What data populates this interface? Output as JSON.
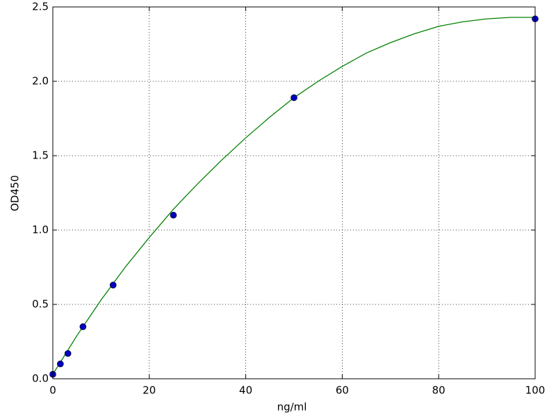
{
  "chart_data": {
    "type": "scatter",
    "xlabel": "ng/ml",
    "ylabel": "OD450",
    "xlim": [
      0,
      100
    ],
    "ylim": [
      0,
      2.5
    ],
    "xticks": [
      0,
      20,
      40,
      60,
      80,
      100
    ],
    "yticks": [
      {
        "value": 0,
        "label": "0.0"
      },
      0.5,
      {
        "value": 1,
        "label": "1.0"
      },
      1.5,
      {
        "value": 2,
        "label": "2.0"
      },
      2.5
    ],
    "grid": true,
    "series": [
      {
        "type": "scatter",
        "color": "#0000c0",
        "x": [
          0,
          1.5625,
          3.125,
          6.25,
          12.5,
          25,
          50,
          100
        ],
        "values": [
          0.03,
          0.1,
          0.17,
          0.35,
          0.63,
          1.1,
          1.89,
          2.42
        ]
      },
      {
        "type": "line",
        "color": "#008000",
        "x": [
          0,
          5,
          10,
          15,
          20,
          25,
          30,
          35,
          40,
          45,
          50,
          55,
          60,
          65,
          70,
          75,
          80,
          85,
          90,
          95,
          100
        ],
        "values": [
          0.03,
          0.29,
          0.53,
          0.75,
          0.95,
          1.14,
          1.31,
          1.47,
          1.62,
          1.76,
          1.89,
          2.0,
          2.1,
          2.19,
          2.26,
          2.32,
          2.37,
          2.4,
          2.42,
          2.43,
          2.43
        ]
      }
    ]
  }
}
